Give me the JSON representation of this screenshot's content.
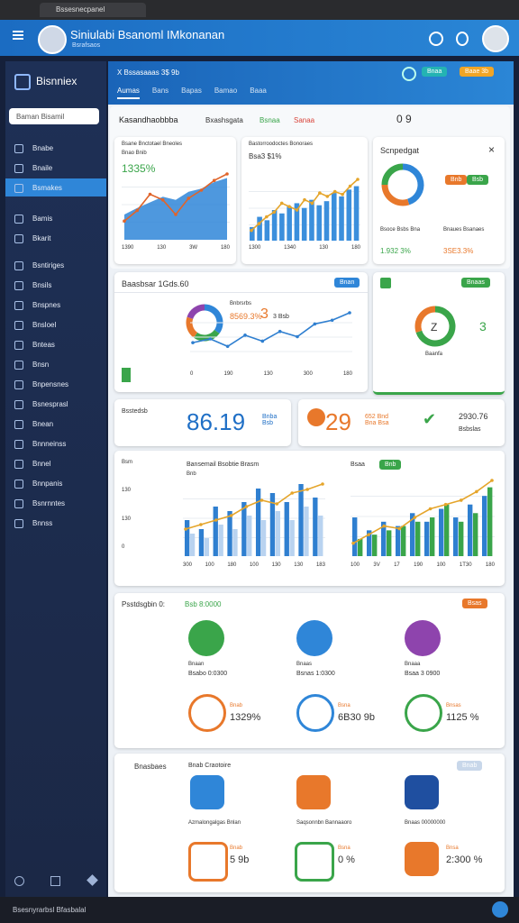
{
  "browser": {
    "tab": "Bssesnecpanel"
  },
  "header": {
    "title": "Siniulabi Bsanoml IMkonanan",
    "subtitle": "Bsrafsaos"
  },
  "sidebar": {
    "brand": "Bisnniex",
    "search": "Baman Bisamil",
    "active": 2,
    "items": [
      "Bnabe",
      "Bnaile",
      "Bsmakes",
      "Bamis",
      "Bkarit",
      "Bsntiriges",
      "Bnsils",
      "Bnspnes",
      "Bnsloel",
      "Bnteas",
      "Bnsn",
      "Bnpensnes",
      "Bsnesprasl",
      "Bnean",
      "Bnnneinss",
      "Bnnel",
      "Bnnpanis",
      "Bsnrnntes",
      "Bnnss"
    ]
  },
  "topbar": {
    "title": "X Bssasaaas 3$ 9b",
    "tabs": [
      "Aumas",
      "Bans",
      "Bapas",
      "Bamao",
      "Baaa"
    ],
    "buttons": [
      "Bnaa",
      "Baae 3b"
    ]
  },
  "overview": {
    "title": "Kasandhaobbba",
    "links": [
      "Bxashsgata",
      "Bsnaa",
      "Sanaa"
    ],
    "counter": "0 9"
  },
  "card1": {
    "label": "Bsane Bnctotael Bneoles",
    "sub": "Bnao Bnib",
    "value": "1335%",
    "xlabels": [
      "1390",
      "130",
      "3W",
      "180"
    ]
  },
  "card2": {
    "label": "Bastorroodoctes Bonoraes",
    "value": "Bsa3 $1%",
    "xlabels": [
      "1300",
      "1340",
      "130",
      "180"
    ]
  },
  "card3": {
    "title": "Scnpedgat",
    "buttons": [
      "Bnb",
      "Bsb"
    ],
    "stats": [
      {
        "label": "Bsoce Bsbs Bna",
        "value": "1.932 3%"
      },
      {
        "label": "Bnaues Bsanaes",
        "value": "3SE3.3%"
      }
    ]
  },
  "card4": {
    "title": "Baasbsar 1Gds.60",
    "button": "Bnan",
    "legend": "Bnbrsrbs",
    "big": "3",
    "value": "8569.3%",
    "unit": "3 Bsb",
    "xlabels": [
      "0",
      "190",
      "130",
      "300",
      "180"
    ]
  },
  "card5": {
    "button": "Bnaas",
    "gauge": "Z",
    "label": "Baanfa",
    "side": "3"
  },
  "kpi": {
    "label": "Bsstedsb",
    "value": "86.19",
    "sub": "Bnba Bsb",
    "value2": "29",
    "sub2": "652 Bnd Bna Bsa",
    "value3": "2930.76",
    "sub3": "Bsbslas"
  },
  "charts_row": {
    "left_title": "Bansemail Bsobtie Brasm",
    "left_sub": "Bnb",
    "right_title": "Bsaa",
    "right_btn": "Bnb",
    "ylabels": [
      "Bsm",
      "130",
      "130",
      "0"
    ],
    "left_x": [
      "300",
      "100",
      "180",
      "100",
      "130",
      "130",
      "183"
    ],
    "right_x": [
      "100",
      "3V",
      "17",
      "190",
      "100",
      "1T30",
      "180"
    ]
  },
  "icons1": {
    "title": "Psstdsgbin 0:",
    "sub": "Bsb 8:0000",
    "button": "Bsas",
    "items": [
      {
        "label": "Bnaan",
        "value": "Bsabo 0:0300",
        "stat": "1329%",
        "stat_label": "Bnab"
      },
      {
        "label": "Bnaas",
        "value": "Bsnas 1:0300",
        "stat": "6B30 9b",
        "stat_label": "Bsna"
      },
      {
        "label": "Bnaaa",
        "value": "Bsaa 3 0900",
        "stat": "1125 %",
        "stat_label": "Bnsas"
      }
    ]
  },
  "icons2": {
    "title": "Bnasbaes",
    "sub": "Bnab Craotoire",
    "button": "Bnab",
    "items": [
      {
        "label": "Azmalongalgas Bnlan",
        "stat": "5 9b",
        "stat_label": "Bnab"
      },
      {
        "label": "Saqsonnbn Bannaaoro",
        "stat": "0 %",
        "stat_label": "Bsna"
      },
      {
        "label": "Bnaas 00000000",
        "stat": "2:300 %",
        "stat_label": "Bnsa"
      }
    ]
  },
  "footer": {
    "text": "Bsesnyrarbsl Bfasbalal"
  },
  "charts": {
    "c1": {
      "type": "series",
      "series": [
        {
          "kind": "area",
          "color": "#2f86d8",
          "values": [
            30,
            38,
            45,
            52,
            48,
            58,
            62,
            70,
            75
          ]
        },
        {
          "kind": "line",
          "color": "#e0642a",
          "values": [
            22,
            35,
            55,
            48,
            30,
            50,
            60,
            72,
            80
          ]
        }
      ]
    },
    "c2": {
      "type": "series",
      "series": [
        {
          "kind": "bar",
          "color": "#3b8fdc",
          "values": [
            20,
            35,
            30,
            45,
            40,
            50,
            55,
            48,
            60,
            52,
            58,
            70,
            65,
            75,
            80
          ]
        },
        {
          "kind": "line",
          "color": "#e5a52b",
          "values": [
            15,
            25,
            35,
            42,
            55,
            50,
            45,
            60,
            55,
            70,
            65,
            72,
            68,
            80,
            90
          ]
        }
      ]
    },
    "c3": {
      "type": "donut",
      "values": [
        45,
        30,
        25
      ],
      "colors": [
        "#2f86d8",
        "#e8782b",
        "#3aa54a"
      ]
    },
    "c4": {
      "type": "series",
      "series": [
        {
          "kind": "line",
          "color": "#2f7fd0",
          "values": [
            30,
            35,
            25,
            40,
            32,
            45,
            38,
            55,
            60,
            70
          ]
        }
      ]
    },
    "c4d": {
      "type": "donut",
      "values": [
        35,
        25,
        20,
        20
      ],
      "colors": [
        "#2f86d8",
        "#3aa54a",
        "#e8782b",
        "#8e44ad"
      ]
    },
    "c5": {
      "type": "donut",
      "values": [
        70,
        30
      ],
      "colors": [
        "#3aa54a",
        "#e8782b"
      ]
    },
    "c6": {
      "type": "series",
      "series": [
        {
          "kind": "bar",
          "color": "#2f7fd0",
          "values": [
            40,
            30,
            55,
            50,
            60,
            75,
            70,
            60,
            80,
            65
          ]
        },
        {
          "kind": "bar",
          "color": "#b9d3f0",
          "values": [
            25,
            20,
            35,
            30,
            45,
            40,
            50,
            40,
            55,
            45
          ]
        },
        {
          "kind": "line",
          "color": "#e5a52b",
          "values": [
            30,
            35,
            40,
            45,
            55,
            62,
            58,
            70,
            74,
            80
          ]
        }
      ]
    },
    "c7": {
      "type": "series",
      "series": [
        {
          "kind": "bar",
          "color": "#2f7fd0",
          "values": [
            45,
            30,
            40,
            35,
            50,
            40,
            55,
            45,
            60,
            70
          ]
        },
        {
          "kind": "bar",
          "color": "#3aa54a",
          "values": [
            20,
            25,
            30,
            35,
            40,
            45,
            60,
            40,
            50,
            80
          ]
        },
        {
          "kind": "line",
          "color": "#e5a52b",
          "values": [
            15,
            25,
            35,
            32,
            45,
            55,
            60,
            65,
            75,
            88
          ]
        }
      ]
    }
  }
}
